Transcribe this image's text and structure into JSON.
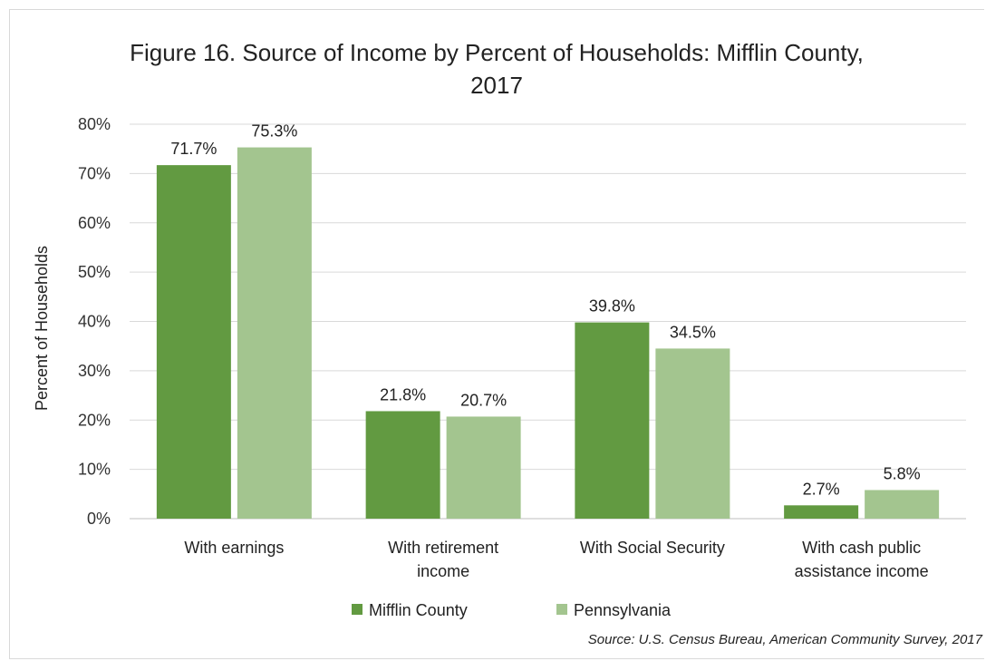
{
  "chart_data": {
    "type": "bar",
    "title_line1": "Figure 16. Source of Income by Percent of Households: Mifflin County,",
    "title_line2": "2017",
    "ylabel": "Percent of Households",
    "xlabel": "",
    "ylim": [
      0,
      80
    ],
    "yticks": [
      "0%",
      "10%",
      "20%",
      "30%",
      "40%",
      "50%",
      "60%",
      "70%",
      "80%"
    ],
    "categories": [
      [
        "With earnings"
      ],
      [
        "With retirement",
        "income"
      ],
      [
        "With Social Security"
      ],
      [
        "With cash public",
        "assistance income"
      ]
    ],
    "series": [
      {
        "name": "Mifflin County",
        "color": "#629a41",
        "values": [
          71.7,
          21.8,
          39.8,
          2.7
        ],
        "labels": [
          "71.7%",
          "21.8%",
          "39.8%",
          "2.7%"
        ]
      },
      {
        "name": "Pennsylvania",
        "color": "#a3c58f",
        "values": [
          75.3,
          20.7,
          34.5,
          5.8
        ],
        "labels": [
          "75.3%",
          "20.7%",
          "34.5%",
          "5.8%"
        ]
      }
    ],
    "grid": true,
    "legend_position": "bottom",
    "source": "Source: U.S. Census Bureau, American Community Survey, 2017"
  }
}
